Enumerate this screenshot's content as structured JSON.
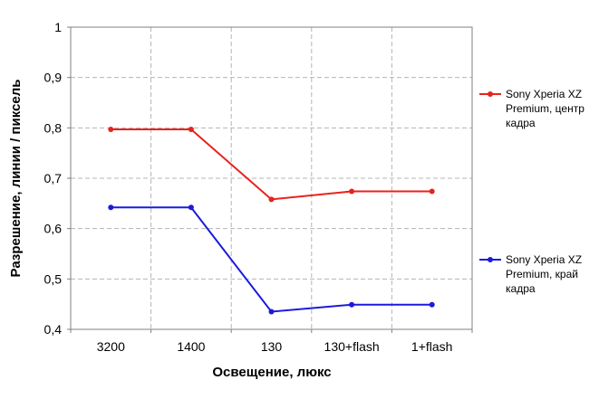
{
  "chart_data": {
    "type": "line",
    "categories": [
      "3200",
      "1400",
      "130",
      "130+flash",
      "1+flash"
    ],
    "xlabel": "Освещение,  люкс",
    "ylabel": "Разрешение,  линии / пиксель",
    "ylim": [
      0.4,
      1.0
    ],
    "yticks": [
      "0,4",
      "0,5",
      "0,6",
      "0,7",
      "0,8",
      "0,9",
      "1"
    ],
    "grid": true,
    "legend_position": "right",
    "series": [
      {
        "name": "Sony Xperia XZ Premium, центр кадра",
        "legend_lines": [
          "Sony Xperia XZ",
          "Premium, центр",
          "кадра"
        ],
        "color": "#e8221c",
        "values": [
          0.797,
          0.797,
          0.658,
          0.674,
          0.674
        ]
      },
      {
        "name": "Sony Xperia XZ Premium, край кадра",
        "legend_lines": [
          "Sony Xperia XZ",
          "Premium, край",
          "кадра"
        ],
        "color": "#1a1adc",
        "values": [
          0.642,
          0.642,
          0.435,
          0.449,
          0.449
        ]
      }
    ]
  }
}
